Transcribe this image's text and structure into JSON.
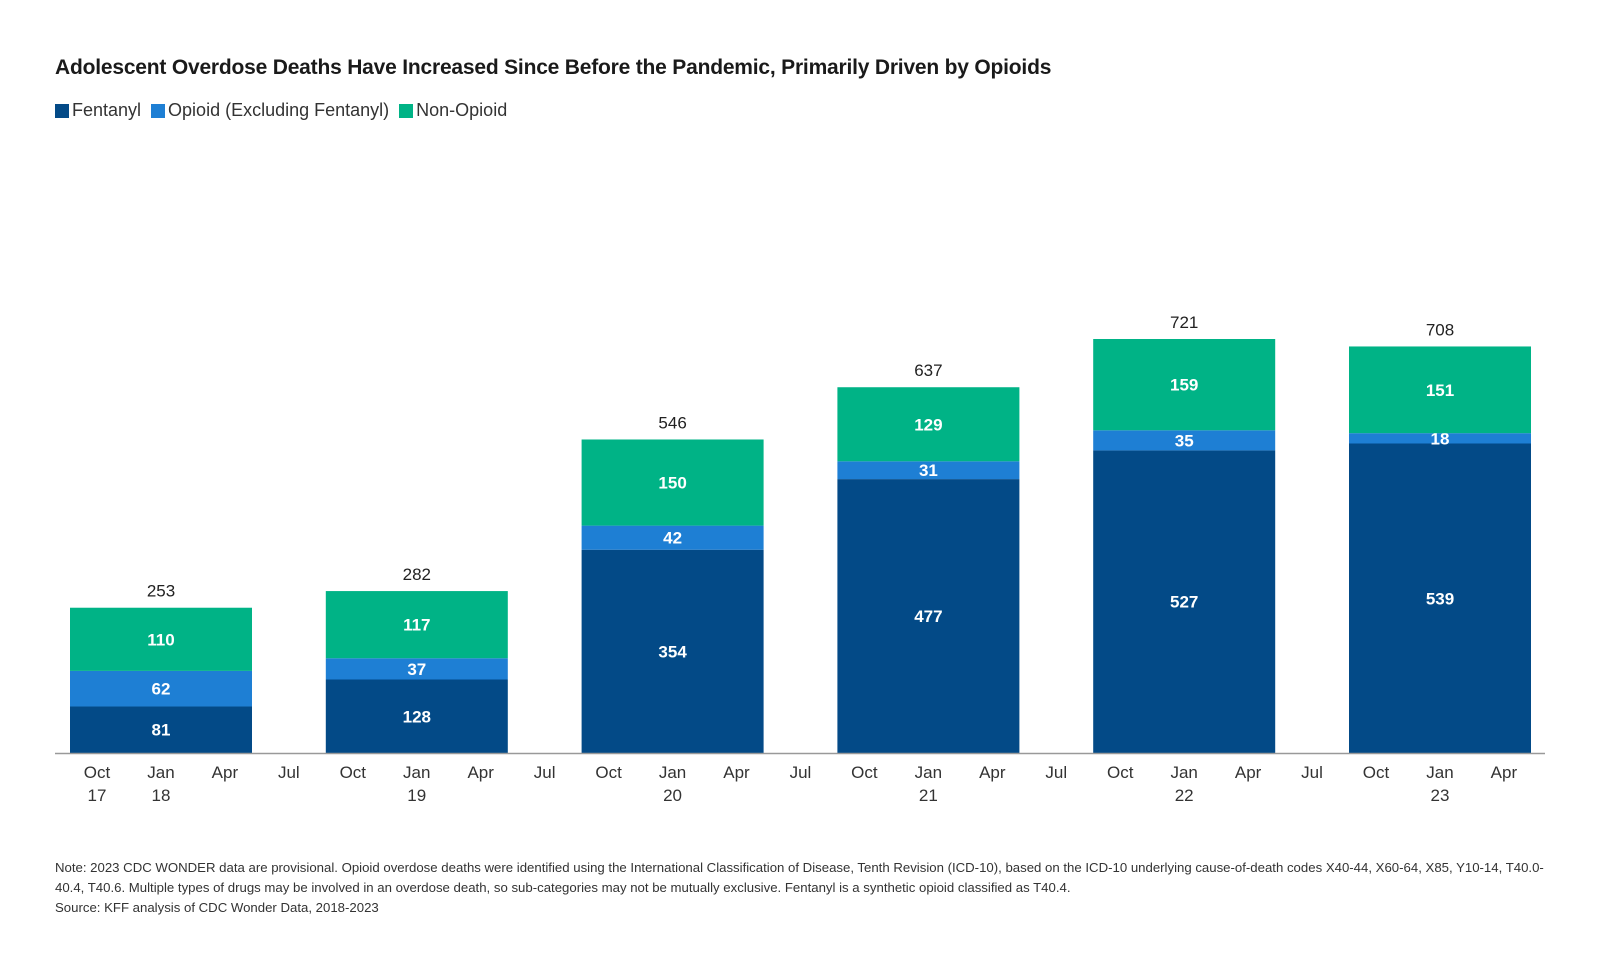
{
  "chart_data": {
    "type": "bar",
    "stacked": true,
    "title": "Adolescent Overdose Deaths Have Increased Since Before the Pandemic, Primarily Driven by Opioids",
    "xlabel": "",
    "ylabel": "",
    "ylim": [
      0,
      800
    ],
    "grid": false,
    "legend_position": "top-left",
    "categories": [
      "Oct 17 – Apr 18",
      "Oct 18 – Apr 19",
      "Oct 19 – Apr 20",
      "Oct 20 – Apr 21",
      "Oct 21 – Apr 22",
      "Oct 22 – Apr 23"
    ],
    "series": [
      {
        "name": "Fentanyl",
        "color": "#034a87",
        "values": [
          81,
          128,
          354,
          477,
          527,
          539
        ]
      },
      {
        "name": "Opioid (Excluding Fentanyl)",
        "color": "#1e7fd4",
        "values": [
          62,
          37,
          42,
          31,
          35,
          18
        ]
      },
      {
        "name": "Non-Opioid",
        "color": "#00b386",
        "values": [
          110,
          117,
          150,
          129,
          159,
          151
        ]
      }
    ],
    "totals": [
      253,
      282,
      546,
      637,
      721,
      708
    ],
    "x_ticks": [
      {
        "month": "Oct",
        "year": "17"
      },
      {
        "month": "Jan",
        "year": "18"
      },
      {
        "month": "Apr",
        "year": ""
      },
      {
        "month": "Jul",
        "year": ""
      },
      {
        "month": "Oct",
        "year": ""
      },
      {
        "month": "Jan",
        "year": "19"
      },
      {
        "month": "Apr",
        "year": ""
      },
      {
        "month": "Jul",
        "year": ""
      },
      {
        "month": "Oct",
        "year": ""
      },
      {
        "month": "Jan",
        "year": "20"
      },
      {
        "month": "Apr",
        "year": ""
      },
      {
        "month": "Jul",
        "year": ""
      },
      {
        "month": "Oct",
        "year": ""
      },
      {
        "month": "Jan",
        "year": "21"
      },
      {
        "month": "Apr",
        "year": ""
      },
      {
        "month": "Jul",
        "year": ""
      },
      {
        "month": "Oct",
        "year": ""
      },
      {
        "month": "Jan",
        "year": "22"
      },
      {
        "month": "Apr",
        "year": ""
      },
      {
        "month": "Jul",
        "year": ""
      },
      {
        "month": "Oct",
        "year": ""
      },
      {
        "month": "Jan",
        "year": "23"
      },
      {
        "month": "Apr",
        "year": ""
      }
    ]
  },
  "legend": [
    {
      "label": "Fentanyl",
      "color": "#034a87"
    },
    {
      "label": "Opioid (Excluding Fentanyl)",
      "color": "#1e7fd4"
    },
    {
      "label": "Non-Opioid",
      "color": "#00b386"
    }
  ],
  "note": "Note: 2023 CDC WONDER data are provisional. Opioid overdose deaths were identified using the International Classification of Disease, Tenth Revision (ICD-10), based on the ICD-10 underlying cause-of-death codes X40-44, X60-64, X85, Y10-14, T40.0-40.4, T40.6. Multiple types of drugs may be involved in an overdose death, so sub-categories may not be mutually exclusive. Fentanyl is a synthetic opioid classified as T40.4.",
  "source": "Source: KFF analysis of CDC Wonder Data, 2018-2023"
}
